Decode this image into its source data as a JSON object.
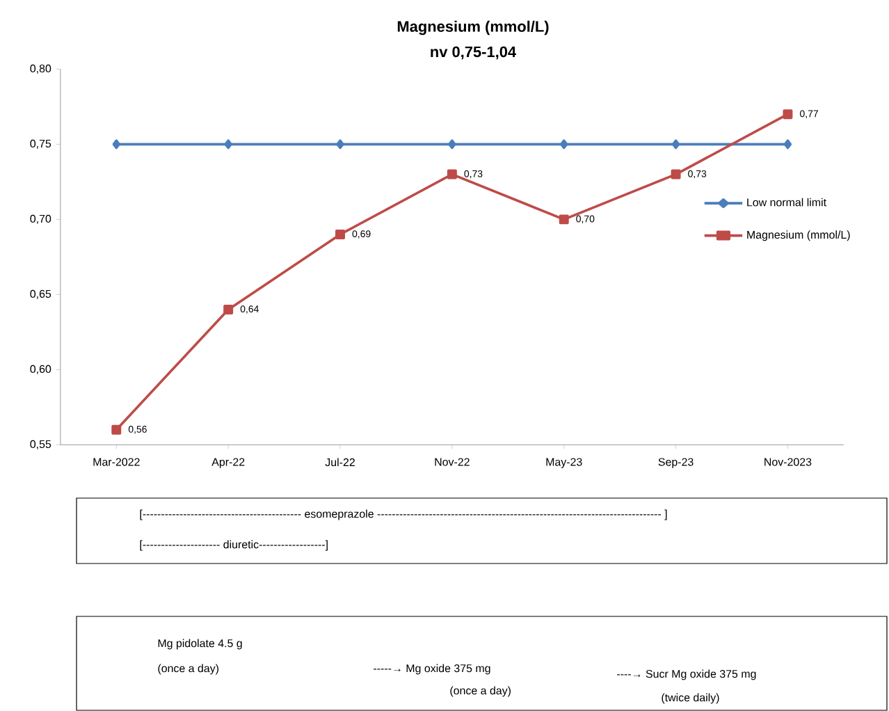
{
  "chart_data": {
    "type": "line",
    "title": "Magnesium (mmol/L)",
    "subtitle": "nv 0,75-1,04",
    "categories": [
      "Mar-2022",
      "Apr-22",
      "Jul-22",
      "Nov-22",
      "May-23",
      "Sep-23",
      "Nov-2023"
    ],
    "series": [
      {
        "name": "Low normal limit",
        "color": "#4a7ebb",
        "marker": "diamond",
        "values": [
          0.75,
          0.75,
          0.75,
          0.75,
          0.75,
          0.75,
          0.75
        ]
      },
      {
        "name": "Magnesium (mmol/L)",
        "color": "#be4b48",
        "marker": "square",
        "values": [
          0.56,
          0.64,
          0.69,
          0.73,
          0.7,
          0.73,
          0.77
        ],
        "value_labels": [
          "0,56",
          "0,64",
          "0,69",
          "0,73",
          "0,70",
          "0,73",
          "0,77"
        ]
      }
    ],
    "ylim": [
      0.55,
      0.8
    ],
    "yticks": [
      {
        "value": 0.55,
        "label": "0,55"
      },
      {
        "value": 0.6,
        "label": "0,60"
      },
      {
        "value": 0.65,
        "label": "0,65"
      },
      {
        "value": 0.7,
        "label": "0,70"
      },
      {
        "value": 0.75,
        "label": "0,75"
      },
      {
        "value": 0.8,
        "label": "0,80"
      }
    ],
    "grid": false,
    "legend": "right",
    "line_style": "solid",
    "annotations": [
      "[------------------------------------------- esomeprazole -----------------------------------------------------------------------------  ]",
      "[---------------------  diuretic------------------]",
      "Mg pidolate 4.5 g",
      "(once a day)",
      "-----→  Mg oxide 375 mg",
      "(once a day)",
      "----→ Sucr Mg oxide 375 mg",
      "(twice daily)"
    ]
  }
}
